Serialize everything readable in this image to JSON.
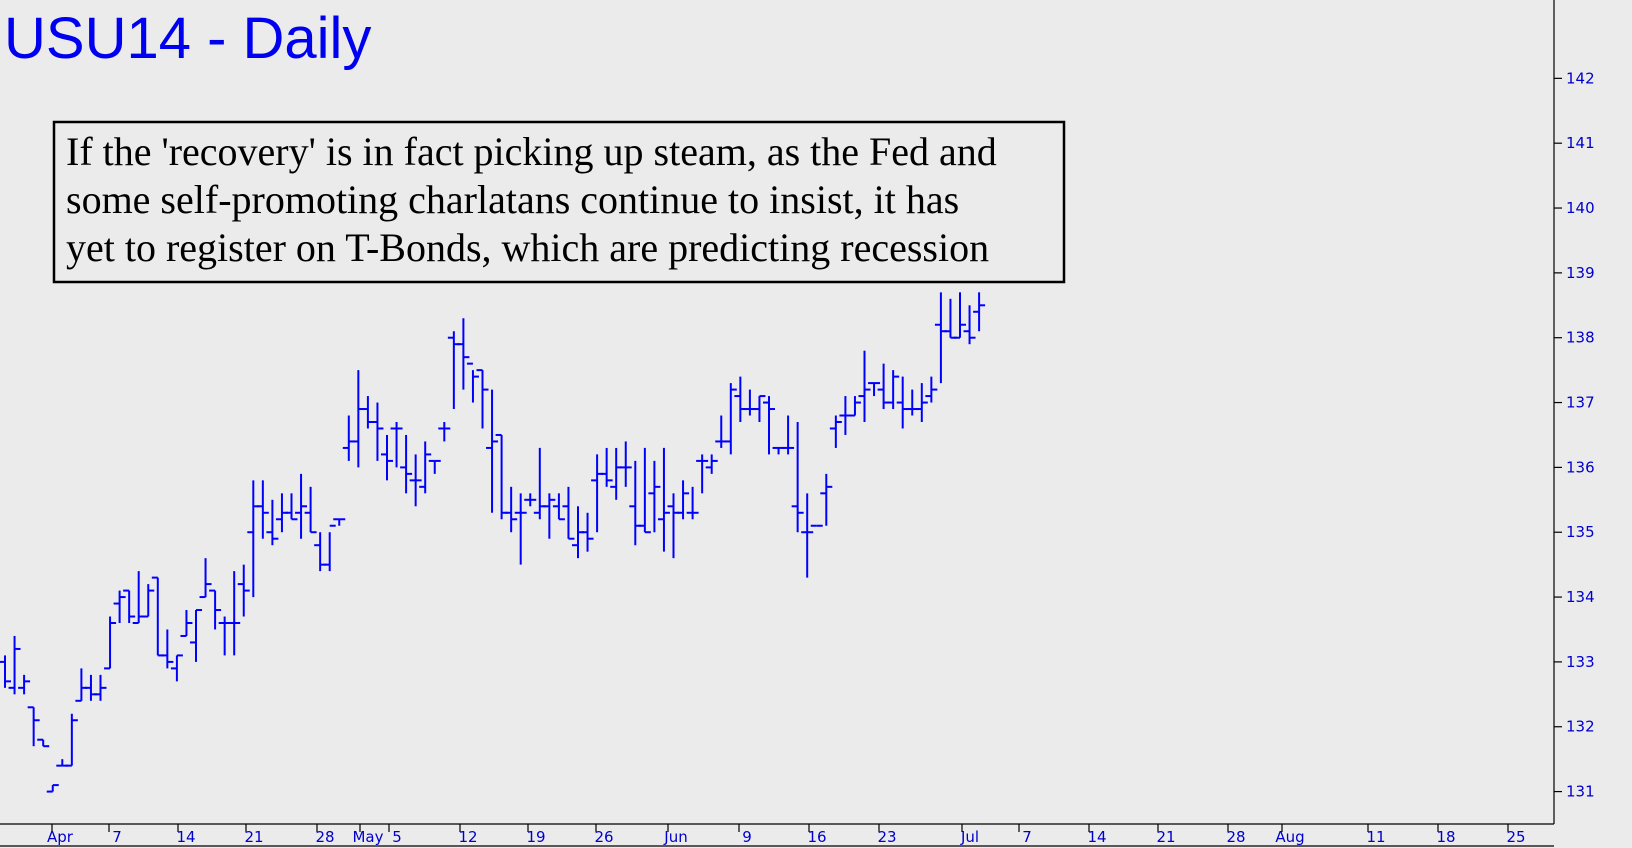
{
  "chart_data": {
    "type": "ohlc",
    "title": "USU14 - Daily",
    "annotation": [
      "If the 'recovery' is in fact picking up steam, as the Fed and",
      "some self-promoting charlatans continue to insist, it has",
      "yet to register on T-Bonds, which are predicting recession"
    ],
    "y_axis": {
      "position": "right",
      "ylim": [
        130.5,
        142.9
      ],
      "ticks": [
        131,
        132,
        133,
        134,
        135,
        136,
        137,
        138,
        139,
        140,
        141,
        142
      ]
    },
    "x_axis": {
      "ticks": [
        "Apr",
        "7",
        "14",
        "21",
        "28",
        "May",
        "5",
        "12",
        "19",
        "26",
        "Jun",
        "9",
        "16",
        "23",
        "Jul",
        "7",
        "14",
        "21",
        "28",
        "Aug",
        "11",
        "18",
        "25"
      ]
    },
    "colors": {
      "bars": "#0000ff",
      "labels": "#0000cc",
      "title": "#0000f0",
      "background": "#ebebeb"
    },
    "bars": [
      {
        "date": "Mar 28",
        "o": 133.0,
        "h": 133.1,
        "l": 132.6,
        "c": 132.7
      },
      {
        "date": "Mar 31",
        "o": 132.6,
        "h": 133.4,
        "l": 132.5,
        "c": 133.2
      },
      {
        "date": "Apr 1",
        "o": 132.6,
        "h": 132.8,
        "l": 132.5,
        "c": 132.7
      },
      {
        "date": "Apr 2",
        "o": 132.3,
        "h": 132.3,
        "l": 131.7,
        "c": 132.1
      },
      {
        "date": "Apr 3",
        "o": 131.8,
        "h": 131.8,
        "l": 131.7,
        "c": 131.7
      },
      {
        "date": "Apr 4",
        "o": 131.0,
        "h": 131.1,
        "l": 131.0,
        "c": 131.1
      },
      {
        "date": "Apr 7",
        "o": 131.4,
        "h": 131.5,
        "l": 131.4,
        "c": 131.4
      },
      {
        "date": "Apr 8",
        "o": 131.4,
        "h": 132.2,
        "l": 131.4,
        "c": 132.1
      },
      {
        "date": "Apr 9",
        "o": 132.4,
        "h": 132.9,
        "l": 132.4,
        "c": 132.6
      },
      {
        "date": "Apr 10",
        "o": 132.6,
        "h": 132.8,
        "l": 132.4,
        "c": 132.5
      },
      {
        "date": "Apr 11",
        "o": 132.5,
        "h": 132.8,
        "l": 132.4,
        "c": 132.6
      },
      {
        "date": "Apr 14",
        "o": 132.9,
        "h": 133.7,
        "l": 132.9,
        "c": 133.6
      },
      {
        "date": "Apr 15",
        "o": 133.9,
        "h": 134.1,
        "l": 133.6,
        "c": 134.0
      },
      {
        "date": "Apr 16",
        "o": 134.1,
        "h": 134.1,
        "l": 133.6,
        "c": 133.7
      },
      {
        "date": "Apr 17",
        "o": 133.6,
        "h": 134.4,
        "l": 133.6,
        "c": 133.7
      },
      {
        "date": "Apr 21",
        "o": 133.7,
        "h": 134.2,
        "l": 133.7,
        "c": 134.1
      },
      {
        "date": "Apr 22",
        "o": 134.3,
        "h": 134.3,
        "l": 133.1,
        "c": 133.1
      },
      {
        "date": "Apr 23",
        "o": 133.1,
        "h": 133.5,
        "l": 132.9,
        "c": 133.0
      },
      {
        "date": "Apr 24",
        "o": 132.9,
        "h": 133.1,
        "l": 132.7,
        "c": 133.1
      },
      {
        "date": "Apr 25",
        "o": 133.4,
        "h": 133.8,
        "l": 133.4,
        "c": 133.6
      },
      {
        "date": "Apr 28",
        "o": 133.3,
        "h": 133.8,
        "l": 133.0,
        "c": 133.8
      },
      {
        "date": "Apr 29",
        "o": 134.0,
        "h": 134.6,
        "l": 134.0,
        "c": 134.2
      },
      {
        "date": "Apr 30",
        "o": 134.1,
        "h": 134.1,
        "l": 133.5,
        "c": 133.8
      },
      {
        "date": "May 1",
        "o": 133.6,
        "h": 133.7,
        "l": 133.1,
        "c": 133.6
      },
      {
        "date": "May 2",
        "o": 133.6,
        "h": 134.4,
        "l": 133.1,
        "c": 133.6
      },
      {
        "date": "May 5",
        "o": 134.2,
        "h": 134.5,
        "l": 133.7,
        "c": 134.1
      },
      {
        "date": "May 6",
        "o": 135.0,
        "h": 135.8,
        "l": 134.0,
        "c": 135.4
      },
      {
        "date": "May 7",
        "o": 135.4,
        "h": 135.8,
        "l": 134.9,
        "c": 135.3
      },
      {
        "date": "May 8",
        "o": 135.0,
        "h": 135.5,
        "l": 134.8,
        "c": 134.9
      },
      {
        "date": "May 9",
        "o": 135.2,
        "h": 135.6,
        "l": 135.0,
        "c": 135.3
      },
      {
        "date": "May 12",
        "o": 135.3,
        "h": 135.6,
        "l": 135.2,
        "c": 135.2
      },
      {
        "date": "May 13",
        "o": 135.3,
        "h": 135.9,
        "l": 134.9,
        "c": 135.4
      },
      {
        "date": "May 14",
        "o": 135.3,
        "h": 135.7,
        "l": 135.0,
        "c": 135.0
      },
      {
        "date": "May 15",
        "o": 134.8,
        "h": 135.0,
        "l": 134.4,
        "c": 134.5
      },
      {
        "date": "May 16",
        "o": 134.5,
        "h": 135.0,
        "l": 134.4,
        "c": 135.1
      },
      {
        "date": "May 19",
        "o": 135.2,
        "h": 135.2,
        "l": 135.1,
        "c": 135.2
      },
      {
        "date": "May 20",
        "o": 136.3,
        "h": 136.8,
        "l": 136.1,
        "c": 136.4
      },
      {
        "date": "May 21",
        "o": 136.4,
        "h": 137.5,
        "l": 136.0,
        "c": 136.9
      },
      {
        "date": "May 22",
        "o": 136.9,
        "h": 137.1,
        "l": 136.6,
        "c": 136.7
      },
      {
        "date": "May 23",
        "o": 136.7,
        "h": 137.0,
        "l": 136.1,
        "c": 136.6
      },
      {
        "date": "May 27",
        "o": 136.2,
        "h": 136.5,
        "l": 135.8,
        "c": 136.1
      },
      {
        "date": "May 28",
        "o": 136.6,
        "h": 136.7,
        "l": 136.0,
        "c": 136.6
      },
      {
        "date": "May 29",
        "o": 136.0,
        "h": 136.5,
        "l": 135.6,
        "c": 135.9
      },
      {
        "date": "May 30",
        "o": 135.8,
        "h": 136.2,
        "l": 135.4,
        "c": 135.8
      },
      {
        "date": "Jun 2",
        "o": 135.7,
        "h": 136.4,
        "l": 135.6,
        "c": 136.2
      },
      {
        "date": "Jun 3",
        "o": 136.1,
        "h": 136.1,
        "l": 135.9,
        "c": 136.1
      },
      {
        "date": "Jun 4",
        "o": 136.6,
        "h": 136.7,
        "l": 136.4,
        "c": 136.6
      },
      {
        "date": "Jun 5",
        "o": 138.0,
        "h": 138.1,
        "l": 136.9,
        "c": 137.9
      },
      {
        "date": "Jun 6",
        "o": 137.9,
        "h": 138.3,
        "l": 137.2,
        "c": 137.7
      },
      {
        "date": "Jun 9",
        "o": 137.6,
        "h": 137.5,
        "l": 137.0,
        "c": 137.4
      },
      {
        "date": "Jun 10",
        "o": 137.5,
        "h": 137.5,
        "l": 136.6,
        "c": 137.2
      },
      {
        "date": "Jun 11",
        "o": 136.3,
        "h": 137.2,
        "l": 135.3,
        "c": 136.4
      },
      {
        "date": "Jun 12",
        "o": 136.5,
        "h": 136.5,
        "l": 135.2,
        "c": 135.3
      },
      {
        "date": "Jun 13",
        "o": 135.3,
        "h": 135.7,
        "l": 135.0,
        "c": 135.2
      },
      {
        "date": "Jun 16",
        "o": 135.3,
        "h": 135.6,
        "l": 134.5,
        "c": 135.3
      },
      {
        "date": "Jun 17",
        "o": 135.5,
        "h": 135.6,
        "l": 135.4,
        "c": 135.5
      },
      {
        "date": "Jun 18",
        "o": 135.3,
        "h": 136.3,
        "l": 135.2,
        "c": 135.4
      },
      {
        "date": "Jun 19",
        "o": 135.4,
        "h": 135.6,
        "l": 134.9,
        "c": 135.5
      },
      {
        "date": "Jun 20",
        "o": 135.4,
        "h": 135.6,
        "l": 135.2,
        "c": 135.2
      },
      {
        "date": "Jun 23",
        "o": 135.4,
        "h": 135.7,
        "l": 134.9,
        "c": 134.9
      },
      {
        "date": "Jun 24",
        "o": 134.8,
        "h": 135.4,
        "l": 134.6,
        "c": 135.0
      },
      {
        "date": "Jun 25",
        "o": 135.0,
        "h": 135.3,
        "l": 134.7,
        "c": 134.9
      },
      {
        "date": "Jun 26",
        "o": 135.8,
        "h": 136.2,
        "l": 135.0,
        "c": 135.9
      },
      {
        "date": "Jun 27",
        "o": 135.9,
        "h": 136.3,
        "l": 135.7,
        "c": 135.8
      },
      {
        "date": "Jun 30",
        "o": 135.7,
        "h": 136.3,
        "l": 135.5,
        "c": 136.0
      },
      {
        "date": "Jul 1",
        "o": 136.0,
        "h": 136.4,
        "l": 135.7,
        "c": 136.0
      },
      {
        "date": "Jul 2",
        "o": 135.4,
        "h": 136.1,
        "l": 134.8,
        "c": 135.1
      },
      {
        "date": "Jul 3",
        "o": 135.1,
        "h": 136.3,
        "l": 135.0,
        "c": 135.0
      },
      {
        "date": "Jul 7",
        "o": 135.6,
        "h": 136.1,
        "l": 135.0,
        "c": 135.7
      },
      {
        "date": "Jul 8",
        "o": 135.2,
        "h": 136.3,
        "l": 134.7,
        "c": 135.3
      },
      {
        "date": "Jul 9",
        "o": 135.4,
        "h": 135.6,
        "l": 134.6,
        "c": 135.3
      },
      {
        "date": "Jul 10",
        "o": 135.3,
        "h": 135.8,
        "l": 135.2,
        "c": 135.6
      },
      {
        "date": "Jul 11",
        "o": 135.3,
        "h": 135.7,
        "l": 135.2,
        "c": 135.3
      },
      {
        "date": "Jul 14",
        "o": 136.1,
        "h": 136.2,
        "l": 135.6,
        "c": 136.1
      },
      {
        "date": "Jul 15",
        "o": 136.0,
        "h": 136.2,
        "l": 135.9,
        "c": 136.1
      },
      {
        "date": "Jul 16",
        "o": 136.4,
        "h": 136.8,
        "l": 136.3,
        "c": 136.4
      },
      {
        "date": "Jul 17",
        "o": 136.4,
        "h": 137.3,
        "l": 136.2,
        "c": 137.2
      },
      {
        "date": "Jul 18",
        "o": 137.1,
        "h": 137.4,
        "l": 136.7,
        "c": 136.9
      },
      {
        "date": "Jul 21",
        "o": 136.9,
        "h": 137.2,
        "l": 136.8,
        "c": 136.9
      },
      {
        "date": "Jul 22",
        "o": 136.9,
        "h": 137.1,
        "l": 136.7,
        "c": 137.1
      },
      {
        "date": "Jul 23",
        "o": 137.0,
        "h": 137.1,
        "l": 136.2,
        "c": 136.9
      },
      {
        "date": "Jul 24",
        "o": 136.3,
        "h": 136.3,
        "l": 136.2,
        "c": 136.3
      },
      {
        "date": "Jul 25",
        "o": 136.3,
        "h": 136.8,
        "l": 136.2,
        "c": 136.3
      },
      {
        "date": "Jul 28",
        "o": 135.4,
        "h": 136.7,
        "l": 135.0,
        "c": 135.3
      },
      {
        "date": "Jul 29",
        "o": 135.0,
        "h": 135.6,
        "l": 134.3,
        "c": 135.0
      },
      {
        "date": "Jul 30",
        "o": 135.1,
        "h": 135.1,
        "l": 135.1,
        "c": 135.1
      },
      {
        "date": "Jul 31",
        "o": 135.6,
        "h": 135.9,
        "l": 135.1,
        "c": 135.7
      },
      {
        "date": "Aug 1",
        "o": 136.6,
        "h": 136.8,
        "l": 136.3,
        "c": 136.7
      },
      {
        "date": "Aug 4",
        "o": 136.8,
        "h": 137.1,
        "l": 136.5,
        "c": 136.8
      },
      {
        "date": "Aug 5",
        "o": 136.8,
        "h": 137.1,
        "l": 136.8,
        "c": 137.0
      },
      {
        "date": "Aug 6",
        "o": 137.1,
        "h": 137.8,
        "l": 136.7,
        "c": 137.2
      },
      {
        "date": "Aug 7",
        "o": 137.3,
        "h": 137.3,
        "l": 137.1,
        "c": 137.3
      },
      {
        "date": "Aug 8",
        "o": 137.2,
        "h": 137.6,
        "l": 136.9,
        "c": 137.0
      },
      {
        "date": "Aug 11",
        "o": 137.0,
        "h": 137.5,
        "l": 136.9,
        "c": 137.4
      },
      {
        "date": "Aug 12",
        "o": 137.0,
        "h": 137.4,
        "l": 136.6,
        "c": 136.9
      },
      {
        "date": "Aug 13",
        "o": 136.9,
        "h": 137.2,
        "l": 136.8,
        "c": 136.9
      },
      {
        "date": "Aug 14",
        "o": 136.9,
        "h": 137.3,
        "l": 136.7,
        "c": 137.0
      },
      {
        "date": "Aug 15",
        "o": 137.1,
        "h": 137.4,
        "l": 137.0,
        "c": 137.2
      },
      {
        "date": "Aug 18",
        "o": 138.2,
        "h": 138.7,
        "l": 137.3,
        "c": 138.1
      },
      {
        "date": "Aug 19",
        "o": 138.1,
        "h": 138.6,
        "l": 138.0,
        "c": 138.0
      },
      {
        "date": "Aug 20",
        "o": 138.0,
        "h": 138.7,
        "l": 138.0,
        "c": 138.2
      },
      {
        "date": "Aug 21",
        "o": 138.1,
        "h": 138.5,
        "l": 137.9,
        "c": 138.0
      },
      {
        "date": "Aug 22",
        "o": 138.4,
        "h": 138.7,
        "l": 138.1,
        "c": 138.5
      }
    ]
  }
}
